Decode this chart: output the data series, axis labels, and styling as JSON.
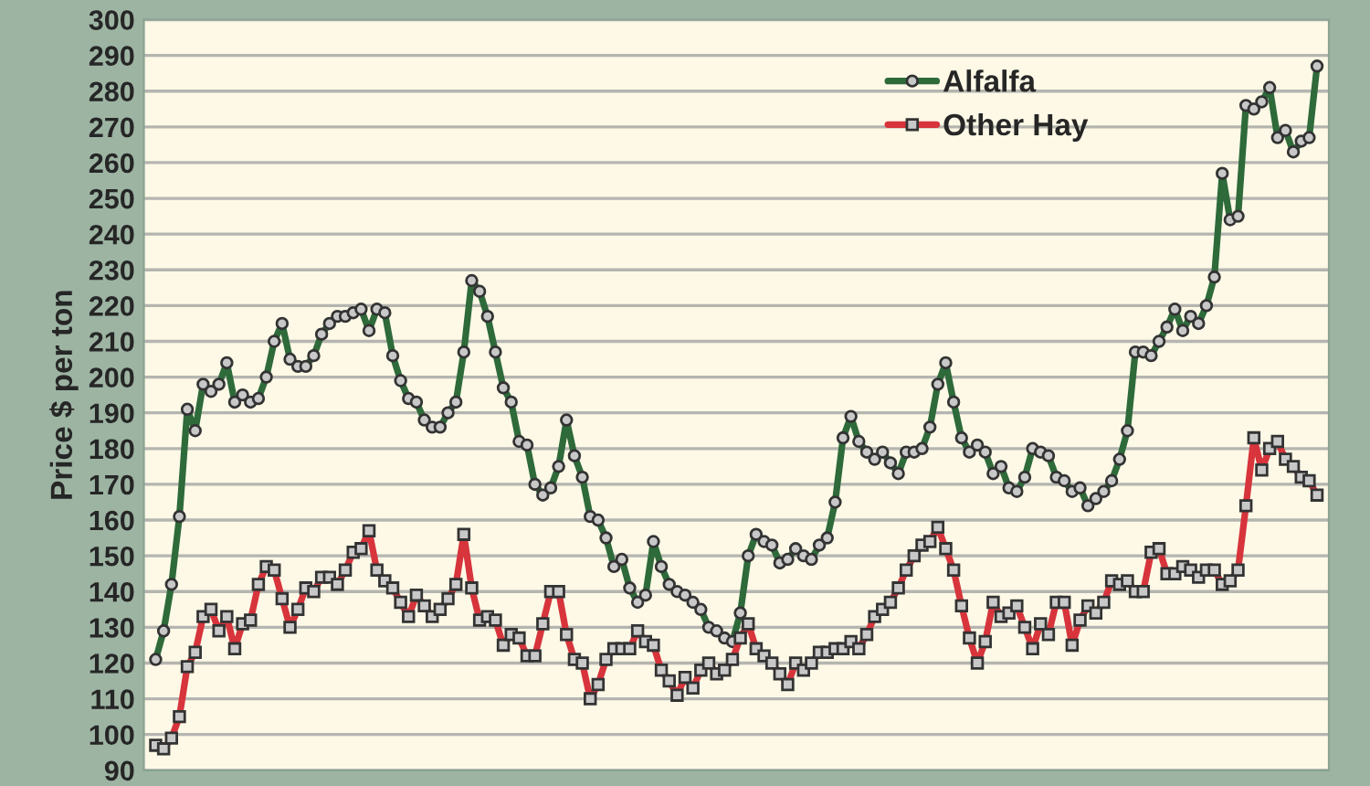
{
  "chart_data": {
    "type": "line",
    "ylabel": "Price $ per ton",
    "categories": [
      null,
      null,
      null,
      null,
      null,
      null,
      null,
      null,
      null,
      null,
      null,
      null,
      null,
      null,
      null,
      null,
      null,
      null,
      null,
      null,
      null,
      null,
      null,
      null,
      null,
      null,
      null,
      null,
      null,
      null,
      null,
      null,
      null,
      null,
      null,
      null,
      null,
      null,
      null,
      null,
      null,
      null,
      null,
      null,
      null,
      null,
      null,
      null,
      null,
      null,
      null,
      null,
      null,
      null,
      null,
      null,
      null,
      null,
      null,
      null,
      null,
      null,
      null,
      null,
      null,
      null,
      null,
      null,
      null,
      null,
      null,
      null,
      null,
      null,
      null,
      null,
      null,
      null,
      null,
      null,
      null,
      null,
      null,
      null,
      null,
      null,
      null,
      null,
      null,
      null,
      null,
      null,
      null,
      null,
      null,
      null,
      null,
      null,
      null,
      null,
      null,
      null,
      null,
      null,
      null,
      null,
      null,
      null,
      null,
      null,
      null,
      null,
      null,
      null,
      null,
      null,
      null,
      null,
      null,
      null,
      null,
      null,
      null,
      null,
      null,
      null,
      null,
      null,
      null,
      null,
      null,
      null,
      null,
      null,
      null,
      null,
      null,
      null,
      null,
      null,
      null,
      null,
      null,
      null,
      null,
      null,
      null,
      null
    ],
    "series": [
      {
        "name": "Alfalfa",
        "color": "#2e6a3a",
        "marker": "circle",
        "values": [
          121,
          129,
          142,
          161,
          191,
          185,
          198,
          196,
          198,
          204,
          193,
          195,
          193,
          194,
          200,
          210,
          215,
          205,
          203,
          203,
          206,
          212,
          215,
          217,
          217,
          218,
          219,
          213,
          219,
          218,
          206,
          199,
          194,
          193,
          188,
          186,
          186,
          190,
          193,
          207,
          227,
          224,
          217,
          207,
          197,
          193,
          182,
          181,
          170,
          167,
          169,
          175,
          188,
          178,
          172,
          161,
          160,
          155,
          147,
          149,
          141,
          137,
          139,
          154,
          147,
          142,
          140,
          139,
          137,
          135,
          130,
          129,
          127,
          126,
          134,
          150,
          156,
          154,
          153,
          148,
          149,
          152,
          150,
          149,
          153,
          155,
          165,
          183,
          189,
          182,
          179,
          177,
          179,
          176,
          173,
          179,
          179,
          180,
          186,
          198,
          204,
          193,
          183,
          179,
          181,
          179,
          173,
          175,
          169,
          168,
          172,
          180,
          179,
          178,
          172,
          171,
          168,
          169,
          164,
          166,
          168,
          171,
          177,
          185,
          207,
          207,
          206,
          210,
          214,
          219,
          213,
          217,
          215,
          220,
          228,
          257,
          244,
          245,
          276,
          275,
          277,
          281,
          267,
          269,
          263,
          266,
          267,
          287
        ]
      },
      {
        "name": "Other Hay",
        "color": "#d7343c",
        "marker": "square",
        "values": [
          97,
          96,
          99,
          105,
          119,
          123,
          133,
          135,
          129,
          133,
          124,
          131,
          132,
          142,
          147,
          146,
          138,
          130,
          135,
          141,
          140,
          144,
          144,
          142,
          146,
          151,
          152,
          157,
          146,
          143,
          141,
          137,
          133,
          139,
          136,
          133,
          135,
          138,
          142,
          156,
          141,
          132,
          133,
          132,
          125,
          128,
          127,
          122,
          122,
          131,
          140,
          140,
          128,
          121,
          120,
          110,
          114,
          121,
          124,
          124,
          124,
          129,
          126,
          125,
          118,
          115,
          111,
          116,
          113,
          118,
          120,
          117,
          118,
          121,
          127,
          131,
          124,
          122,
          120,
          117,
          114,
          120,
          118,
          120,
          123,
          123,
          124,
          124,
          126,
          124,
          128,
          133,
          135,
          137,
          141,
          146,
          150,
          153,
          154,
          158,
          152,
          146,
          136,
          127,
          120,
          126,
          137,
          133,
          134,
          136,
          130,
          124,
          131,
          128,
          137,
          137,
          125,
          132,
          136,
          134,
          137,
          143,
          142,
          143,
          140,
          140,
          151,
          152,
          145,
          145,
          147,
          146,
          144,
          146,
          146,
          142,
          143,
          146,
          164,
          183,
          174,
          180,
          182,
          177,
          175,
          172,
          171,
          167
        ]
      }
    ],
    "ylim": [
      90,
      300
    ],
    "yticks": [
      90,
      100,
      110,
      120,
      130,
      140,
      150,
      160,
      170,
      180,
      190,
      200,
      210,
      220,
      230,
      240,
      250,
      260,
      270,
      280,
      290,
      300
    ],
    "tick_labels": "y",
    "grid": "y",
    "legend": "top right"
  }
}
